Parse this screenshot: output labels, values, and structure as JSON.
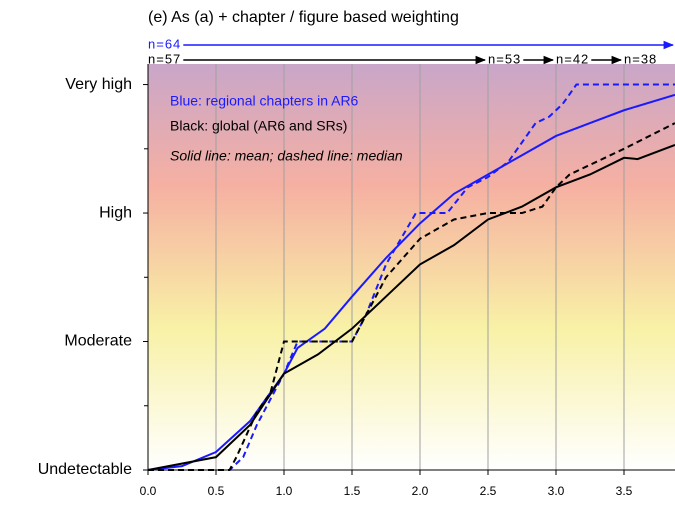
{
  "chart_data": {
    "type": "line",
    "title": "(e) As (a) + chapter / figure based weighting",
    "xlim": [
      0,
      3.875
    ],
    "xticks": [
      0,
      0.5,
      1,
      1.5,
      2,
      2.5,
      3,
      3.5
    ],
    "xtick_labels": [
      "0.0",
      "0.5",
      "1.0",
      "1.5",
      "2.0",
      "2.5",
      "3.0",
      "3.5"
    ],
    "ylim": [
      0,
      3.16
    ],
    "yticks": [
      {
        "value": 0,
        "label": "Undetectable"
      },
      {
        "value": 1,
        "label": "Moderate"
      },
      {
        "value": 2,
        "label": "High"
      },
      {
        "value": 3,
        "label": "Very high"
      }
    ],
    "minor_yticks": [
      0.5,
      1.5,
      2.5
    ],
    "grid": "x",
    "legend_texts": [
      {
        "text": "Blue: regional chapters in AR6",
        "color": "#1a1aff",
        "italic": false
      },
      {
        "text": "Black: global (AR6 and SRs)",
        "color": "#000000",
        "italic": false
      },
      {
        "text": "Solid line: mean; dashed line: median",
        "color": "#000000",
        "italic": true
      }
    ],
    "sample_rows": [
      {
        "color": "#1a1aff",
        "labels": [
          {
            "text": "n=64",
            "x": 0
          }
        ]
      },
      {
        "color": "#000000",
        "labels": [
          {
            "text": "n=57",
            "x": 0
          },
          {
            "text": "n=53",
            "x": 2.5
          },
          {
            "text": "n=42",
            "x": 3.0
          },
          {
            "text": "n=38",
            "x": 3.5
          }
        ]
      }
    ],
    "series": [
      {
        "color": "#1a1aff",
        "dash": false,
        "x": [
          0,
          0.25,
          0.5,
          0.75,
          1.0,
          1.1,
          1.3,
          1.5,
          1.75,
          2.0,
          2.25,
          2.5,
          2.75,
          3.0,
          3.25,
          3.5,
          3.875
        ],
        "values": [
          0,
          0.03,
          0.14,
          0.38,
          0.75,
          0.95,
          1.1,
          1.35,
          1.65,
          1.92,
          2.15,
          2.3,
          2.45,
          2.6,
          2.7,
          2.8,
          2.92
        ]
      },
      {
        "color": "#1a1aff",
        "dash": true,
        "x": [
          0,
          0.6,
          0.7,
          0.8,
          0.9,
          1.0,
          1.1,
          1.5,
          1.6,
          1.75,
          1.97,
          2.2,
          2.35,
          2.5,
          2.65,
          2.75,
          2.85,
          2.95,
          3.05,
          3.15,
          3.875
        ],
        "values": [
          0,
          0,
          0.1,
          0.35,
          0.55,
          0.75,
          1.0,
          1.0,
          1.2,
          1.6,
          2.0,
          2.0,
          2.2,
          2.28,
          2.4,
          2.55,
          2.7,
          2.75,
          2.85,
          3.0,
          3.0
        ]
      },
      {
        "color": "#000000",
        "dash": false,
        "x": [
          0,
          0.5,
          0.75,
          1.0,
          1.25,
          1.5,
          1.75,
          2.0,
          2.25,
          2.5,
          2.75,
          3.0,
          3.25,
          3.5,
          3.6,
          3.875
        ],
        "values": [
          0,
          0.1,
          0.35,
          0.75,
          0.9,
          1.1,
          1.35,
          1.6,
          1.75,
          1.95,
          2.05,
          2.2,
          2.3,
          2.43,
          2.42,
          2.53
        ]
      },
      {
        "color": "#000000",
        "dash": true,
        "x": [
          0,
          0.6,
          0.65,
          0.8,
          0.9,
          1.0,
          1.5,
          1.6,
          1.75,
          2.0,
          2.25,
          2.5,
          2.75,
          2.9,
          3.0,
          3.1,
          3.5,
          3.875
        ],
        "values": [
          0,
          0,
          0.1,
          0.45,
          0.6,
          1.0,
          1.0,
          1.2,
          1.5,
          1.8,
          1.95,
          2.0,
          2.0,
          2.05,
          2.2,
          2.3,
          2.5,
          2.7
        ]
      }
    ]
  }
}
